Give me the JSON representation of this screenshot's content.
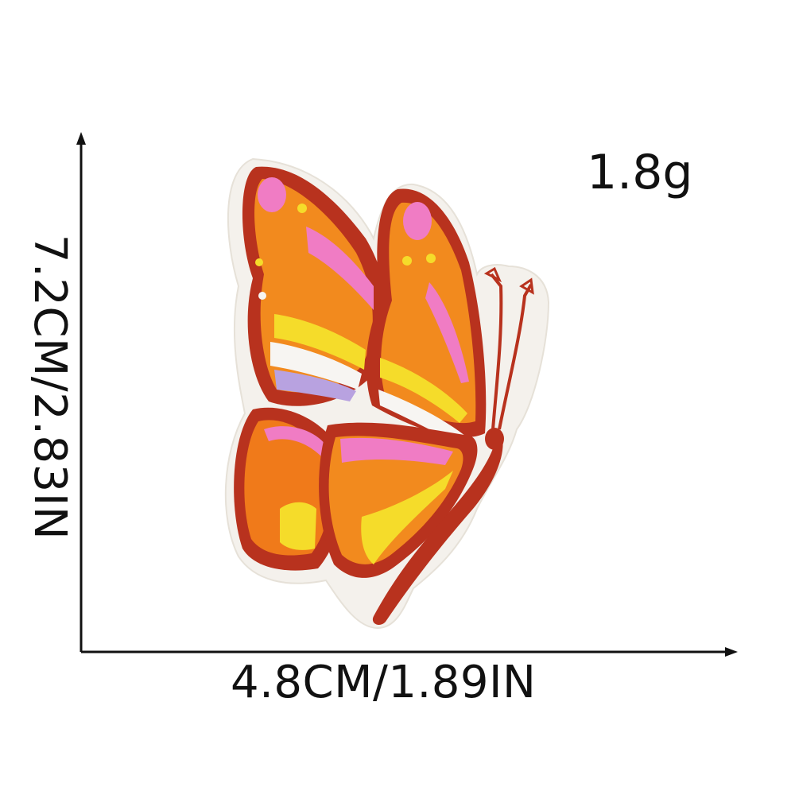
{
  "product": {
    "weight": "1.8g",
    "height_label": "7.2CM/2.83IN",
    "width_label": "4.8CM/1.89IN",
    "subject_icon": "butterfly-icon"
  },
  "colors": {
    "outline": "#b8321e",
    "orange": "#f28a1e",
    "deep_orange": "#f07a1a",
    "yellow": "#f5dc2a",
    "pink": "#f07cc4",
    "lavender": "#b8a2e0",
    "white_segment": "#f7f5f2",
    "backing": "#f4f1ec",
    "axis": "#111111"
  }
}
